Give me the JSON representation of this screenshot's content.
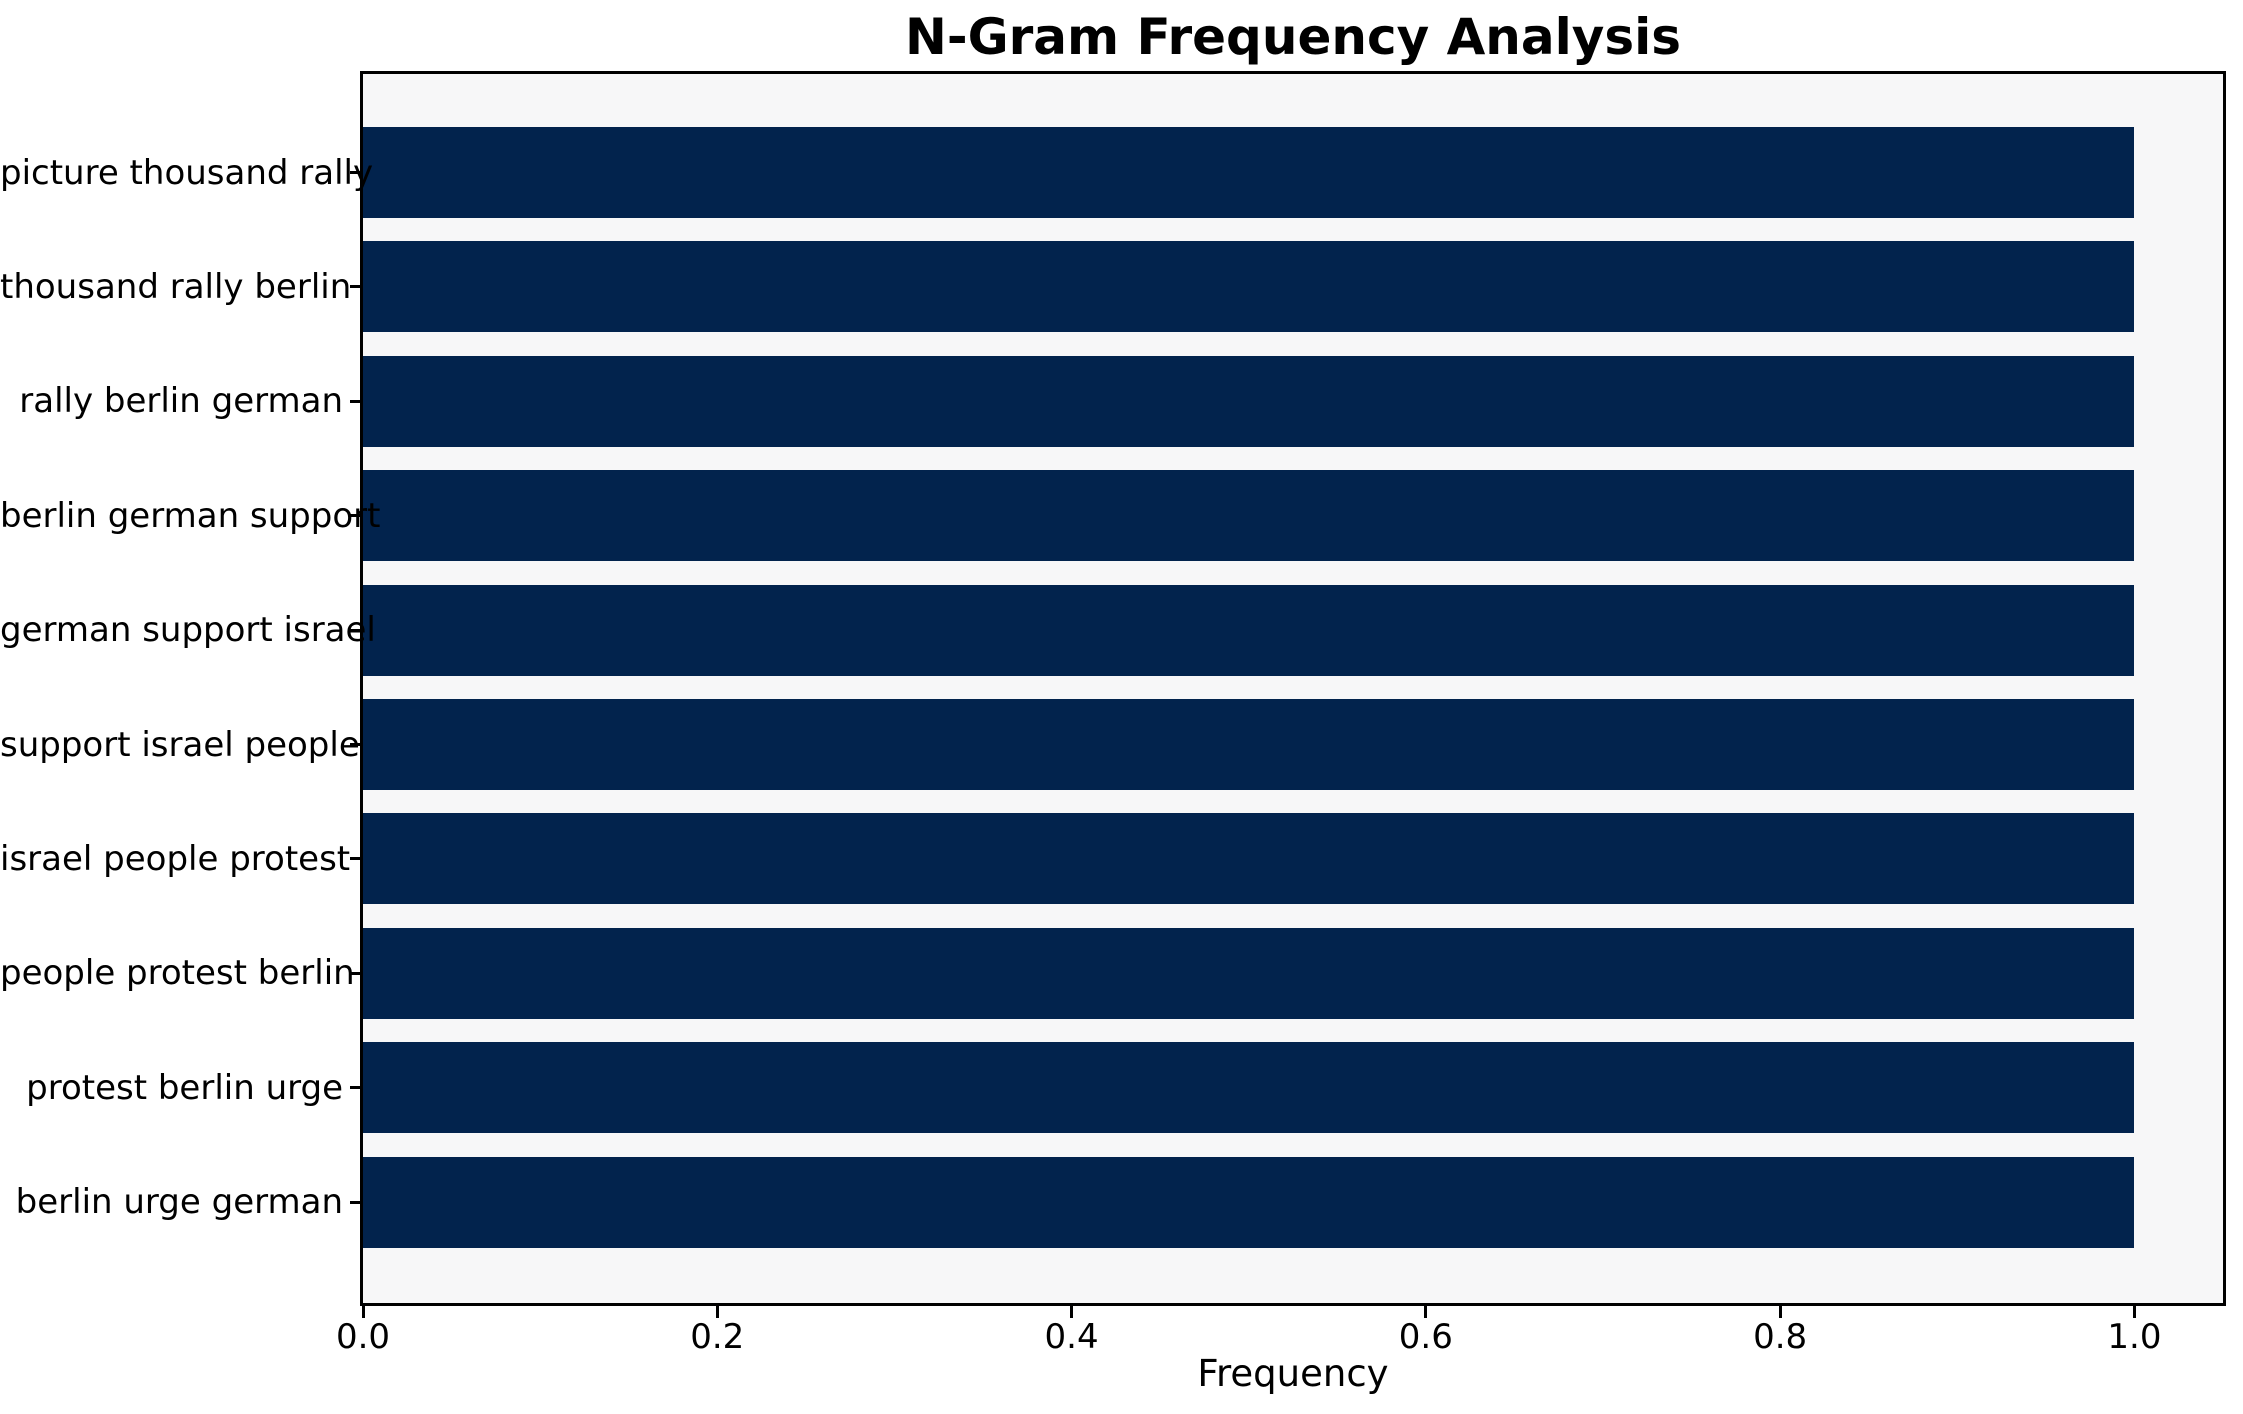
{
  "chart_data": {
    "type": "bar",
    "orientation": "horizontal",
    "title": "N-Gram Frequency Analysis",
    "xlabel": "Frequency",
    "ylabel": "",
    "categories": [
      "picture thousand rally",
      "thousand rally berlin",
      "rally berlin german",
      "berlin german support",
      "german support israel",
      "support israel people",
      "israel people protest",
      "people protest berlin",
      "protest berlin urge",
      "berlin urge german"
    ],
    "values": [
      1.0,
      1.0,
      1.0,
      1.0,
      1.0,
      1.0,
      1.0,
      1.0,
      1.0,
      1.0
    ],
    "xticks": {
      "values": [
        0.0,
        0.2,
        0.4,
        0.6,
        0.8,
        1.0
      ],
      "labels": [
        "0.0",
        "0.2",
        "0.4",
        "0.6",
        "0.8",
        "1.0"
      ]
    },
    "xlim": [
      0,
      1.05
    ],
    "grid": false,
    "legend": null,
    "colors": {
      "bar": "#02234d",
      "plot_background": "#f7f7f8",
      "spine": "#000000",
      "text": "#000000",
      "page_background": "#ffffff"
    }
  }
}
